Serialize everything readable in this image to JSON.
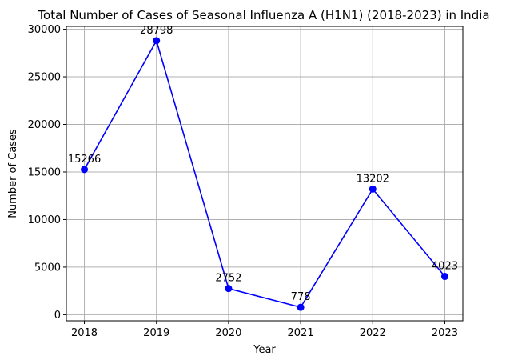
{
  "chart_data": {
    "type": "line",
    "title": "Total Number of Cases of Seasonal Influenza A (H1N1) (2018-2023) in India",
    "xlabel": "Year",
    "ylabel": "Number of Cases",
    "x": [
      2018,
      2019,
      2020,
      2021,
      2022,
      2023
    ],
    "series": [
      {
        "values": [
          15266,
          28798,
          2752,
          778,
          13202,
          4023
        ]
      }
    ],
    "x_ticks": [
      "2018",
      "2019",
      "2020",
      "2021",
      "2022",
      "2023"
    ],
    "y_ticks": [
      "0",
      "5000",
      "10000",
      "15000",
      "20000",
      "25000",
      "30000"
    ],
    "xlim": [
      2017.75,
      2023.25
    ],
    "ylim": [
      -640,
      30300
    ],
    "grid": true,
    "legend": "none",
    "marker": "circle",
    "data_labels": true,
    "colors": {
      "line": "#0000ff",
      "marker": "#0000ff",
      "grid": "#b0b0b0"
    }
  }
}
